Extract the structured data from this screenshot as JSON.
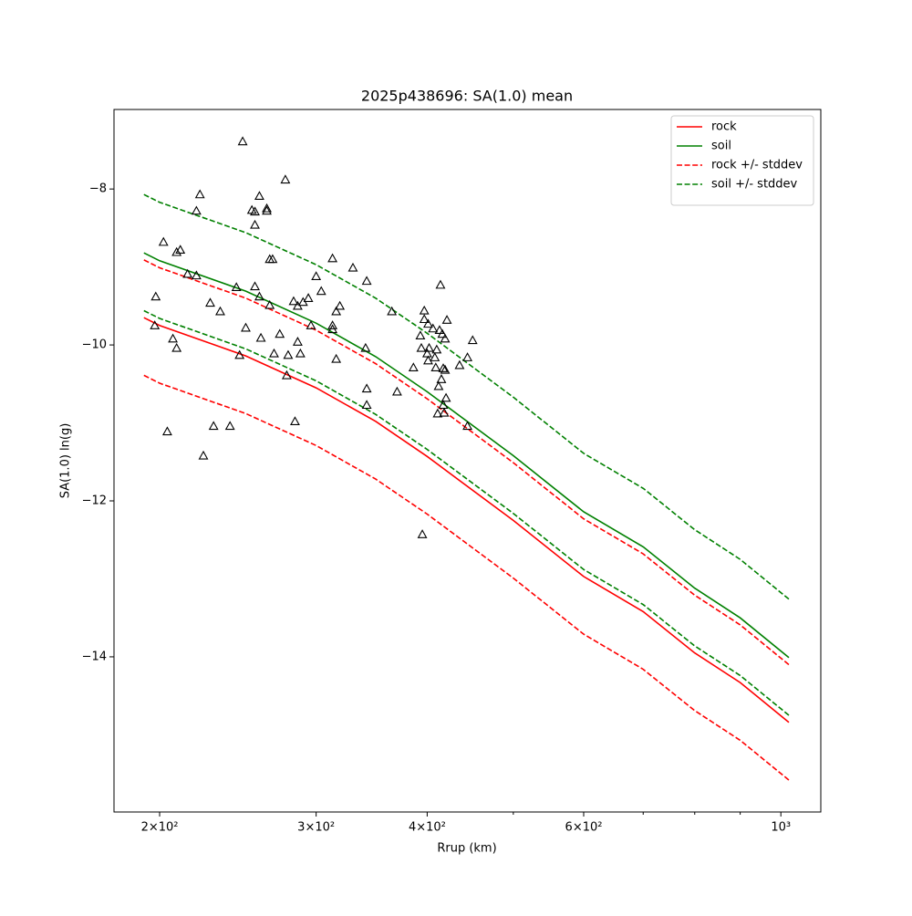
{
  "chart_data": {
    "type": "line",
    "title": "2025p438696: SA(1.0) mean",
    "xlabel": "Rrup (km)",
    "ylabel": "SA(1.0) ln(g)",
    "xscale": "log",
    "xlim": [
      177.7,
      1109
    ],
    "ylim": [
      -15.99,
      -6.98
    ],
    "xticks": [
      {
        "value": 200,
        "label": "2×10²"
      },
      {
        "value": 300,
        "label": "3×10²"
      },
      {
        "value": 400,
        "label": "4×10²"
      },
      {
        "value": 600,
        "label": "6×10²"
      },
      {
        "value": 1000,
        "label": "10³"
      }
    ],
    "xminorticks": [
      500,
      700,
      800,
      900
    ],
    "yticks": [
      {
        "value": -8,
        "label": "−8"
      },
      {
        "value": -10,
        "label": "−10"
      },
      {
        "value": -12,
        "label": "−12"
      },
      {
        "value": -14,
        "label": "−14"
      }
    ],
    "legend": "upper right",
    "x": [
      192,
      200,
      250,
      300,
      350,
      400,
      500,
      600,
      700,
      800,
      900,
      1021
    ],
    "series": [
      {
        "name": "rock",
        "color": "#ff0000",
        "dash": false,
        "values": [
          -9.65,
          -9.75,
          -10.14,
          -10.55,
          -10.98,
          -11.43,
          -12.25,
          -12.97,
          -13.42,
          -13.95,
          -14.33,
          -14.84
        ]
      },
      {
        "name": "soil",
        "color": "#008000",
        "dash": false,
        "values": [
          -8.82,
          -8.92,
          -9.31,
          -9.72,
          -10.15,
          -10.6,
          -11.42,
          -12.14,
          -12.59,
          -13.12,
          -13.5,
          -14.01
        ]
      },
      {
        "name": "rock +/- stddev",
        "color": "#ff0000",
        "dash": true,
        "values": [
          -8.91,
          -9.01,
          -9.4,
          -9.81,
          -10.24,
          -10.69,
          -11.51,
          -12.23,
          -12.68,
          -13.21,
          -13.59,
          -14.1
        ]
      },
      {
        "color": "#ff0000",
        "dash": true,
        "values": [
          -10.39,
          -10.49,
          -10.88,
          -11.29,
          -11.72,
          -12.17,
          -12.99,
          -13.71,
          -14.16,
          -14.69,
          -15.07,
          -15.58
        ]
      },
      {
        "name": "soil +/- stddev",
        "color": "#008000",
        "dash": true,
        "values": [
          -8.07,
          -8.17,
          -8.56,
          -8.97,
          -9.4,
          -9.85,
          -10.67,
          -11.39,
          -11.84,
          -12.37,
          -12.75,
          -13.26
        ]
      },
      {
        "color": "#008000",
        "dash": true,
        "values": [
          -9.56,
          -9.66,
          -10.05,
          -10.46,
          -10.89,
          -11.34,
          -12.16,
          -12.88,
          -13.33,
          -13.86,
          -14.24,
          -14.75
        ]
      }
    ],
    "scatter": {
      "color": "#000000",
      "x": [
        248,
        198,
        197.5,
        202,
        204,
        209,
        211,
        207,
        209,
        215,
        220,
        222,
        220,
        224,
        228,
        230,
        234,
        240,
        244,
        246,
        250,
        254,
        256,
        256,
        259,
        256,
        259,
        260,
        264,
        264,
        266,
        268,
        266,
        269,
        273,
        277,
        278,
        279,
        283,
        286,
        284,
        286,
        288,
        290,
        294,
        296,
        300,
        304,
        313,
        313,
        313,
        316,
        316,
        319,
        330,
        342,
        341,
        342,
        342,
        365,
        370,
        386,
        393,
        394,
        397,
        397,
        400,
        401,
        402,
        395,
        406,
        408,
        409,
        410,
        411,
        412,
        413,
        414,
        415,
        416,
        417,
        418,
        419,
        419,
        417,
        420,
        421,
        435,
        444,
        444,
        450,
        401
      ],
      "y": [
        -7.39,
        -9.38,
        -9.75,
        -8.68,
        -11.11,
        -8.81,
        -8.78,
        -9.92,
        -10.04,
        -9.09,
        -8.28,
        -8.07,
        -9.11,
        -11.42,
        -9.46,
        -11.04,
        -9.57,
        -11.04,
        -9.26,
        -10.13,
        -9.78,
        -8.27,
        -8.29,
        -8.46,
        -8.09,
        -9.25,
        -9.38,
        -9.91,
        -8.25,
        -8.28,
        -8.9,
        -8.9,
        -9.49,
        -10.11,
        -9.86,
        -7.88,
        -10.39,
        -10.13,
        -9.44,
        -9.5,
        -10.98,
        -9.96,
        -10.11,
        -9.45,
        -9.4,
        -9.75,
        -9.12,
        -9.31,
        -8.89,
        -9.75,
        -9.8,
        -10.18,
        -9.57,
        -9.5,
        -9.01,
        -9.18,
        -10.04,
        -10.56,
        -10.77,
        -9.57,
        -10.6,
        -10.29,
        -9.88,
        -10.04,
        -9.56,
        -9.67,
        -10.11,
        -10.2,
        -10.04,
        -12.43,
        -9.79,
        -10.16,
        -10.29,
        -10.06,
        -10.88,
        -10.53,
        -9.81,
        -9.23,
        -10.44,
        -9.86,
        -10.3,
        -10.87,
        -9.92,
        -10.32,
        -10.77,
        -10.68,
        -9.68,
        -10.26,
        -11.04,
        -10.16,
        -9.94,
        -9.73
      ]
    }
  }
}
